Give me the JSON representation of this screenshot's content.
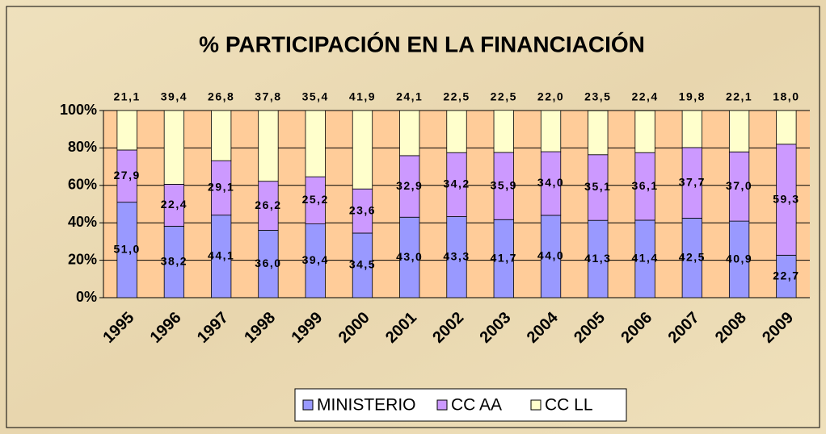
{
  "chart_data": {
    "type": "stacked_bar",
    "title": "% PARTICIPACIÓN EN LA FINANCIACIÓN",
    "categories": [
      "1995",
      "1996",
      "1997",
      "1998",
      "1999",
      "2000",
      "2001",
      "2002",
      "2003",
      "2004",
      "2005",
      "2006",
      "2007",
      "2008",
      "2009"
    ],
    "series": [
      {
        "name": "MINISTERIO",
        "color": "#9999ff",
        "values": [
          51.0,
          38.2,
          44.1,
          36.0,
          39.4,
          34.5,
          43.0,
          43.3,
          41.7,
          44.0,
          41.3,
          41.4,
          42.5,
          40.9,
          22.7
        ],
        "value_labels": [
          "51,0",
          "38,2",
          "44,1",
          "36,0",
          "39,4",
          "34,5",
          "43,0",
          "43,3",
          "41,7",
          "44,0",
          "41,3",
          "41,4",
          "42,5",
          "40,9",
          "22,7"
        ]
      },
      {
        "name": "CC AA",
        "color": "#cc99ff",
        "values": [
          27.9,
          22.4,
          29.1,
          26.2,
          25.2,
          23.6,
          32.9,
          34.2,
          35.9,
          34.0,
          35.1,
          36.1,
          37.7,
          37.0,
          59.3
        ],
        "value_labels": [
          "27,9",
          "22,4",
          "29,1",
          "26,2",
          "25,2",
          "23,6",
          "32,9",
          "34,2",
          "35,9",
          "34,0",
          "35,1",
          "36,1",
          "37,7",
          "37,0",
          "59,3"
        ]
      },
      {
        "name": "CC LL",
        "color": "#ffffcc",
        "values": [
          21.1,
          39.4,
          26.8,
          37.8,
          35.4,
          41.9,
          24.1,
          22.5,
          22.5,
          22.0,
          23.5,
          22.4,
          19.8,
          22.1,
          18.0
        ],
        "value_labels": [
          "21,1",
          "39,4",
          "26,8",
          "37,8",
          "35,4",
          "41,9",
          "24,1",
          "22,5",
          "22,5",
          "22,0",
          "23,5",
          "22,4",
          "19,8",
          "22,1",
          "18,0"
        ]
      }
    ],
    "ylim": [
      0,
      100
    ],
    "yticks": [
      {
        "value": 0,
        "label": "0%"
      },
      {
        "value": 20,
        "label": "20%"
      },
      {
        "value": 40,
        "label": "40%"
      },
      {
        "value": 60,
        "label": "60%"
      },
      {
        "value": 80,
        "label": "80%"
      },
      {
        "value": 100,
        "label": "100%"
      }
    ],
    "grid": true,
    "legend": "bottom"
  }
}
